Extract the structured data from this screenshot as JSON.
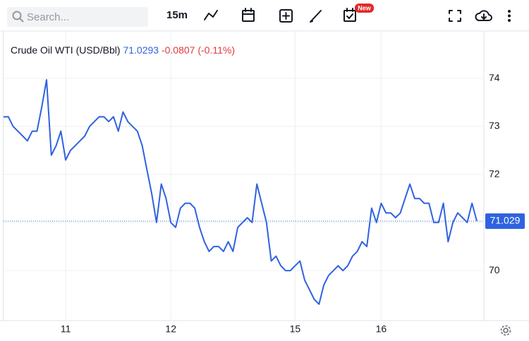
{
  "toolbar": {
    "search_placeholder": "Search...",
    "interval": "15m",
    "badge": "New"
  },
  "chart_data": {
    "type": "line",
    "title": "Crude Oil WTI (USD/Bbl)",
    "last": "71.0293",
    "change": "-0.0807",
    "change_pct": "(-0.11%)",
    "categories": [
      null,
      null,
      null,
      null,
      null,
      null,
      null,
      null,
      null,
      null,
      null,
      null,
      null,
      "11",
      null,
      null,
      null,
      null,
      null,
      null,
      null,
      null,
      null,
      null,
      null,
      null,
      null,
      null,
      null,
      null,
      null,
      null,
      null,
      null,
      null,
      "12",
      null,
      null,
      null,
      null,
      null,
      null,
      null,
      null,
      null,
      null,
      null,
      null,
      null,
      null,
      null,
      null,
      null,
      null,
      null,
      null,
      null,
      null,
      null,
      null,
      null,
      "15",
      null,
      null,
      null,
      null,
      null,
      null,
      null,
      null,
      null,
      null,
      null,
      null,
      null,
      null,
      null,
      null,
      null,
      "16",
      null,
      null,
      null,
      null,
      null,
      null,
      null,
      null,
      null,
      null,
      null,
      null,
      null,
      null,
      null,
      null,
      null,
      null,
      null,
      null
    ],
    "series": [
      {
        "name": "Crude Oil WTI",
        "color": "#2f62e0",
        "values": [
          73.2,
          73.2,
          73.0,
          72.9,
          72.8,
          72.7,
          72.9,
          72.9,
          73.4,
          73.97,
          72.4,
          72.6,
          72.9,
          72.3,
          72.5,
          72.6,
          72.7,
          72.8,
          73.0,
          73.1,
          73.2,
          73.2,
          73.1,
          73.2,
          72.9,
          73.3,
          73.1,
          73.0,
          72.9,
          72.6,
          72.1,
          71.6,
          71.0,
          71.8,
          71.5,
          71.0,
          70.9,
          71.3,
          71.4,
          71.4,
          71.3,
          70.9,
          70.6,
          70.4,
          70.5,
          70.5,
          70.4,
          70.6,
          70.4,
          70.9,
          71.0,
          71.1,
          71.0,
          71.8,
          71.4,
          71.0,
          70.2,
          70.3,
          70.1,
          70.0,
          70.0,
          70.1,
          70.2,
          69.8,
          69.6,
          69.4,
          69.3,
          69.7,
          69.9,
          70.0,
          70.1,
          70.0,
          70.1,
          70.3,
          70.4,
          70.6,
          70.5,
          71.3,
          71.0,
          71.4,
          71.2,
          71.2,
          71.1,
          71.2,
          71.5,
          71.8,
          71.5,
          71.5,
          71.4,
          71.4,
          71.0,
          71.0,
          71.4,
          70.6,
          71.0,
          71.2,
          71.1,
          71.0,
          71.4,
          71.03
        ]
      }
    ],
    "current_price": {
      "value": 71.029,
      "label": "71.029"
    },
    "ylim": [
      68.96,
      74.97
    ],
    "yticks": [
      70,
      71,
      72,
      73,
      74
    ],
    "grid": true
  }
}
